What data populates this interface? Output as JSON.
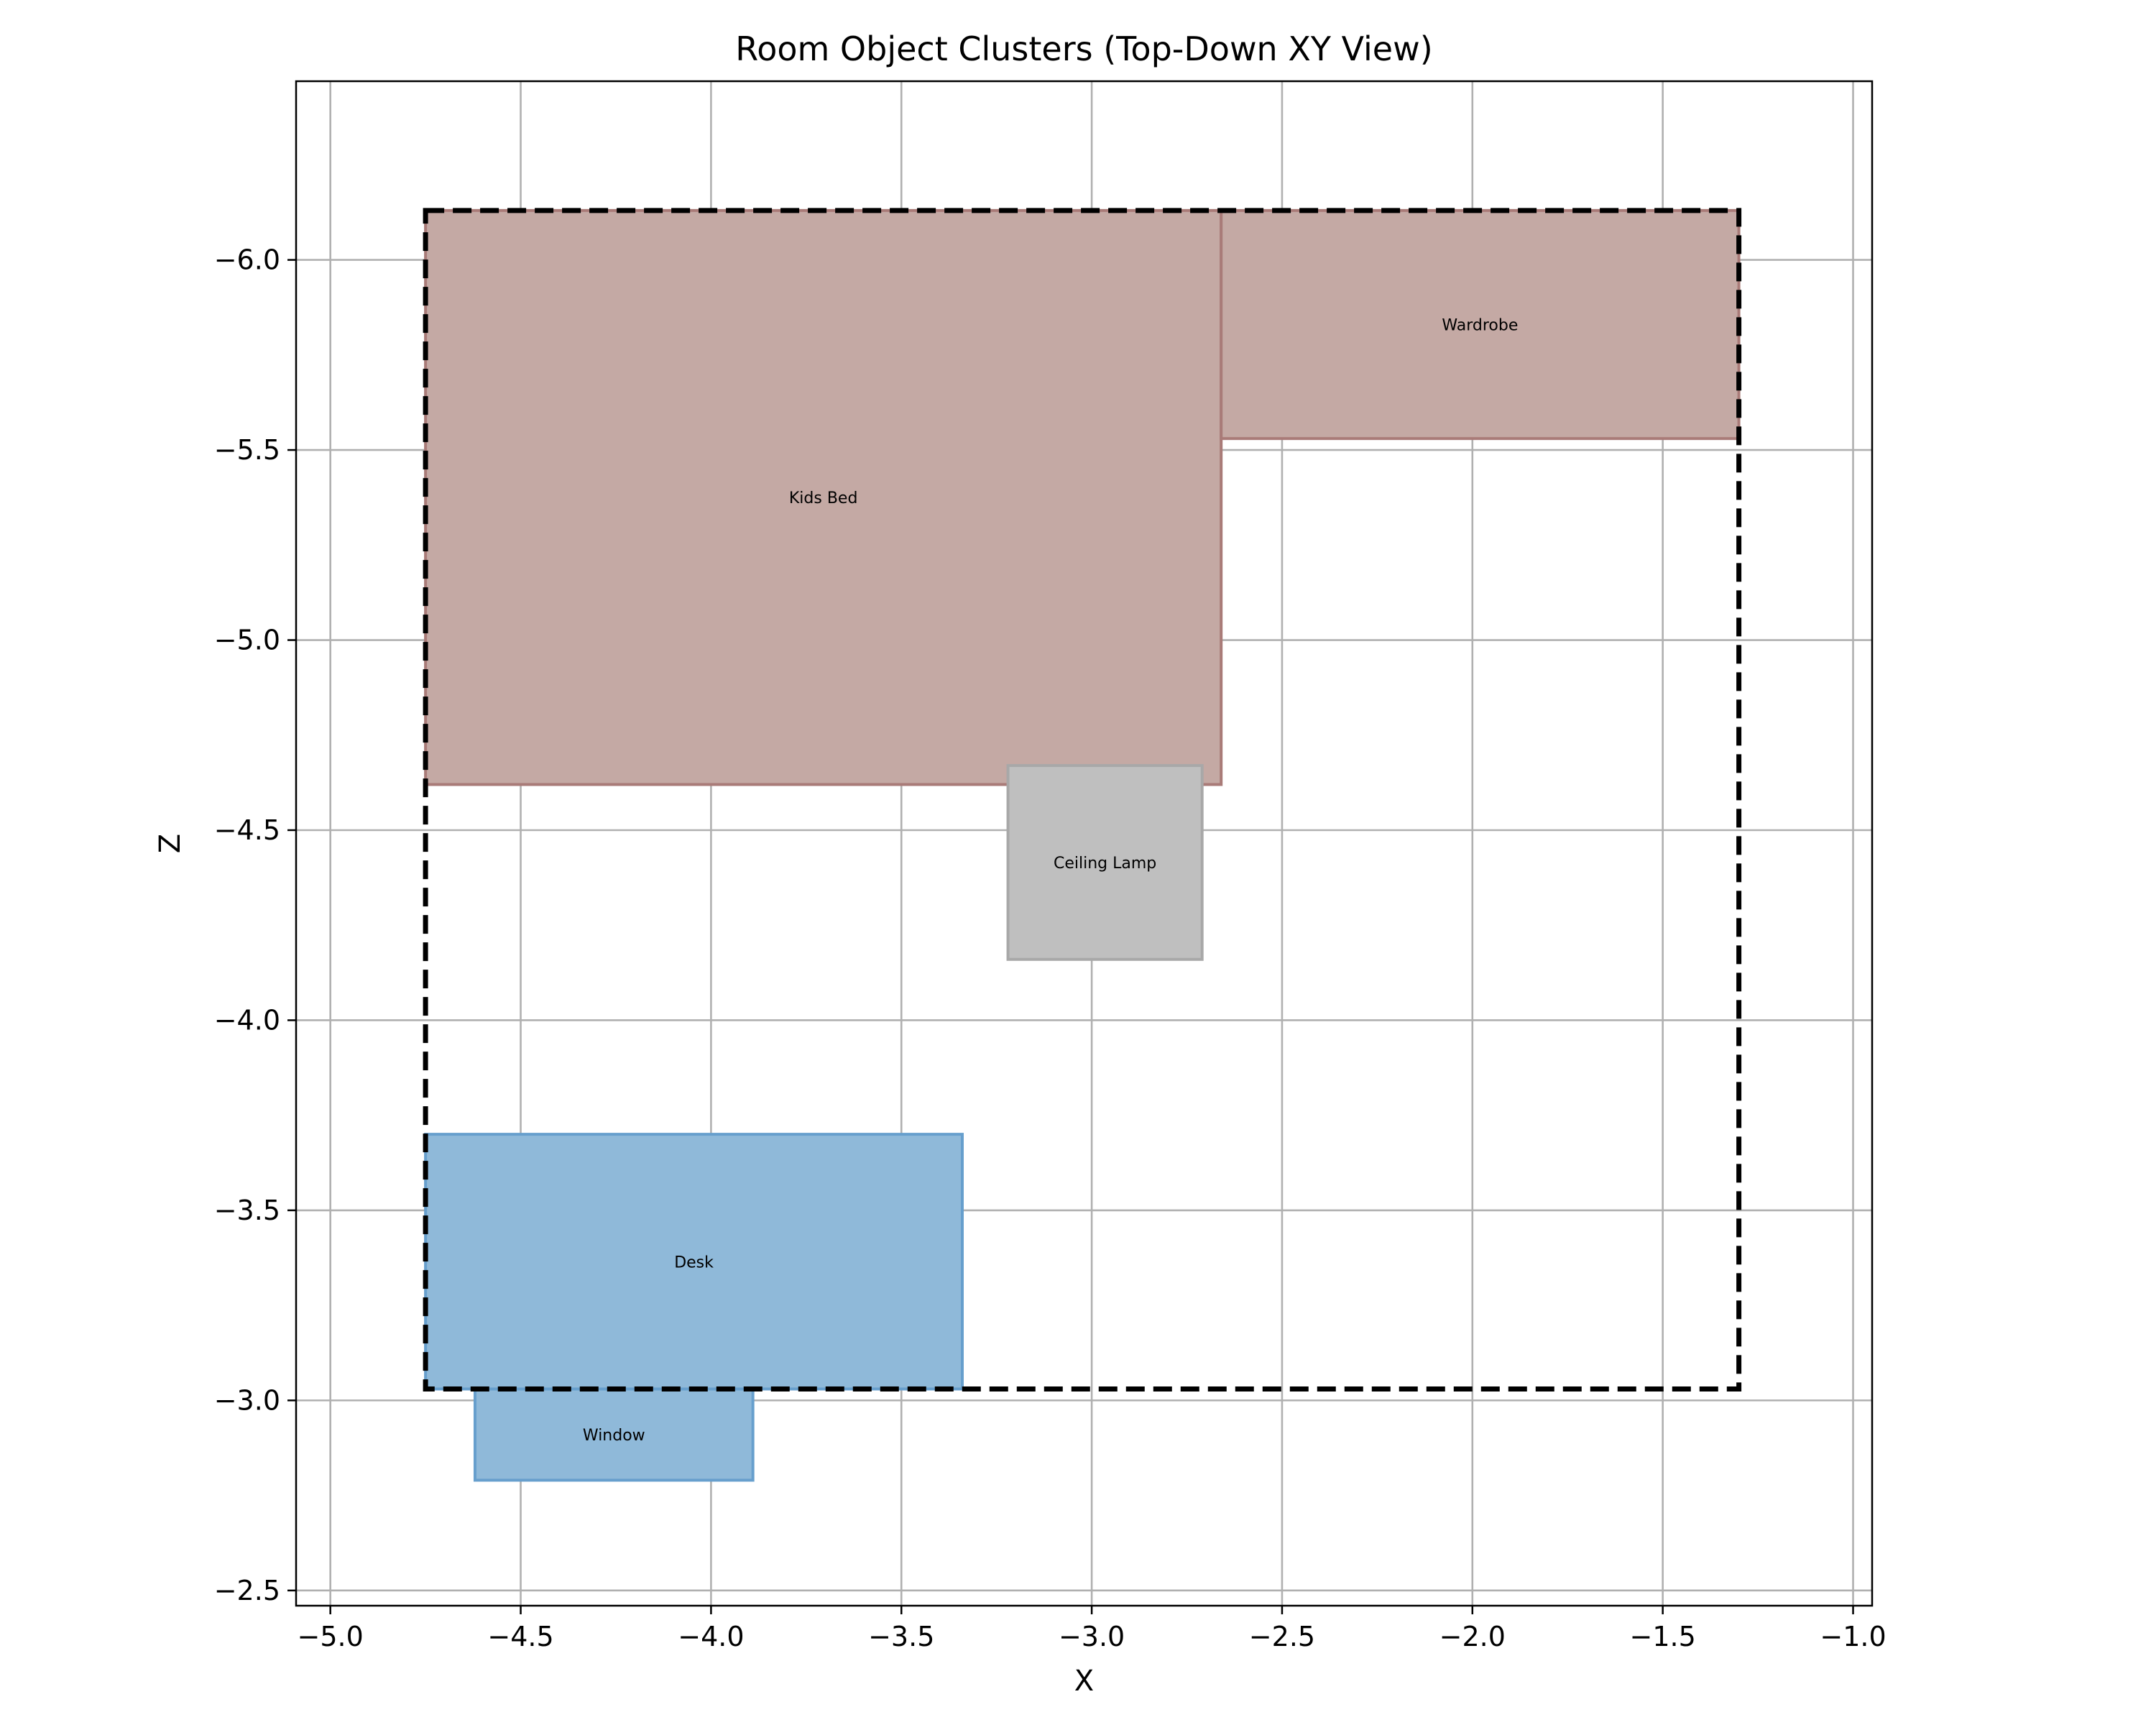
{
  "chart_data": {
    "type": "rectangle-layout",
    "title": "Room Object Clusters (Top-Down XY View)",
    "xlabel": "X",
    "ylabel": "Z",
    "xlim": [
      -5.09,
      -0.95
    ],
    "ylim": [
      -2.46,
      -6.47
    ],
    "y_inverted": true,
    "grid": true,
    "x_ticks": [
      -5.0,
      -4.5,
      -4.0,
      -3.5,
      -3.0,
      -2.5,
      -2.0,
      -1.5,
      -1.0
    ],
    "x_tick_labels": [
      "−5.0",
      "−4.5",
      "−4.0",
      "−3.5",
      "−3.0",
      "−2.5",
      "−2.0",
      "−1.5",
      "−1.0"
    ],
    "y_ticks": [
      -6.0,
      -5.5,
      -5.0,
      -4.5,
      -4.0,
      -3.5,
      -3.0,
      -2.5
    ],
    "y_tick_labels": [
      "−6.0",
      "−5.5",
      "−5.0",
      "−4.5",
      "−4.0",
      "−3.5",
      "−3.0",
      "−2.5"
    ],
    "room_boundary": {
      "x0": -4.75,
      "x1": -1.3,
      "z0": -6.13,
      "z1": -3.03,
      "style": "dashed",
      "color": "#000000"
    },
    "objects": [
      {
        "label": "Kids Bed",
        "x0": -4.75,
        "x1": -2.66,
        "z0": -6.13,
        "z1": -4.62,
        "fill": "#c4a9a4",
        "stroke": "#a97b78"
      },
      {
        "label": "Wardrobe",
        "x0": -2.66,
        "x1": -1.3,
        "z0": -6.13,
        "z1": -5.53,
        "fill": "#c4a9a4",
        "stroke": "#a97b78"
      },
      {
        "label": "Ceiling Lamp",
        "x0": -3.22,
        "x1": -2.71,
        "z0": -4.67,
        "z1": -4.16,
        "fill": "#bfbfbf",
        "stroke": "#a8a8a8"
      },
      {
        "label": "Desk",
        "x0": -4.75,
        "x1": -3.34,
        "z0": -3.7,
        "z1": -3.03,
        "fill": "#8fb9d9",
        "stroke": "#679fcd"
      },
      {
        "label": "Window",
        "x0": -4.62,
        "x1": -3.89,
        "z0": -3.03,
        "z1": -2.79,
        "fill": "#8fb9d9",
        "stroke": "#679fcd"
      }
    ]
  }
}
